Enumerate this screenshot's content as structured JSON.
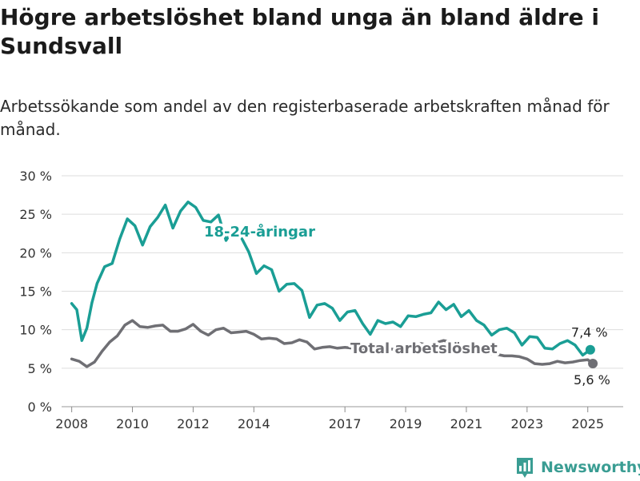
{
  "title": "Högre arbetslöshet bland unga än bland äldre i Sundsvall",
  "subtitle": "Arbetssökande som andel av den registerbaserade arbetskraften månad för månad.",
  "brand": "Newsworthy",
  "chart_data": {
    "type": "line",
    "x_ticks": [
      "2008",
      "2010",
      "2012",
      "2014",
      "2017",
      "2019",
      "2021",
      "2023",
      "2025"
    ],
    "y_ticks": [
      "0 %",
      "5 %",
      "10 %",
      "15 %",
      "20 %",
      "25 %",
      "30 %"
    ],
    "ylim": [
      0,
      30
    ],
    "xlim": [
      "2007-09",
      "2026-03"
    ],
    "grid": true,
    "series": [
      {
        "name": "18-24-åringar",
        "color": "#1a9e95",
        "end_label": "7,4 %",
        "points": [
          [
            "2008-01",
            13.4
          ],
          [
            "2008-03",
            12.6
          ],
          [
            "2008-05",
            8.6
          ],
          [
            "2008-07",
            10.2
          ],
          [
            "2008-09",
            13.5
          ],
          [
            "2008-11",
            16.0
          ],
          [
            "2009-02",
            18.2
          ],
          [
            "2009-05",
            18.6
          ],
          [
            "2009-08",
            21.8
          ],
          [
            "2009-11",
            24.4
          ],
          [
            "2010-02",
            23.5
          ],
          [
            "2010-05",
            21.0
          ],
          [
            "2010-08",
            23.4
          ],
          [
            "2010-11",
            24.6
          ],
          [
            "2011-02",
            26.2
          ],
          [
            "2011-05",
            23.2
          ],
          [
            "2011-08",
            25.4
          ],
          [
            "2011-11",
            26.6
          ],
          [
            "2012-02",
            25.9
          ],
          [
            "2012-05",
            24.2
          ],
          [
            "2012-08",
            24.0
          ],
          [
            "2012-11",
            24.9
          ],
          [
            "2013-02",
            21.6
          ],
          [
            "2013-05",
            23.2
          ],
          [
            "2013-08",
            22.0
          ],
          [
            "2013-11",
            20.1
          ],
          [
            "2014-02",
            17.3
          ],
          [
            "2014-05",
            18.3
          ],
          [
            "2014-08",
            17.8
          ],
          [
            "2014-11",
            15.0
          ],
          [
            "2015-02",
            15.9
          ],
          [
            "2015-05",
            16.0
          ],
          [
            "2015-08",
            15.1
          ],
          [
            "2015-11",
            11.6
          ],
          [
            "2016-02",
            13.2
          ],
          [
            "2016-05",
            13.4
          ],
          [
            "2016-08",
            12.8
          ],
          [
            "2016-11",
            11.2
          ],
          [
            "2017-02",
            12.3
          ],
          [
            "2017-05",
            12.5
          ],
          [
            "2017-08",
            10.8
          ],
          [
            "2017-11",
            9.4
          ],
          [
            "2018-02",
            11.2
          ],
          [
            "2018-05",
            10.8
          ],
          [
            "2018-08",
            11.0
          ],
          [
            "2018-11",
            10.4
          ],
          [
            "2019-02",
            11.8
          ],
          [
            "2019-05",
            11.7
          ],
          [
            "2019-08",
            12.0
          ],
          [
            "2019-11",
            12.2
          ],
          [
            "2020-02",
            13.6
          ],
          [
            "2020-05",
            12.6
          ],
          [
            "2020-08",
            13.3
          ],
          [
            "2020-11",
            11.7
          ],
          [
            "2021-02",
            12.5
          ],
          [
            "2021-05",
            11.2
          ],
          [
            "2021-08",
            10.6
          ],
          [
            "2021-11",
            9.3
          ],
          [
            "2022-02",
            10.0
          ],
          [
            "2022-05",
            10.2
          ],
          [
            "2022-08",
            9.6
          ],
          [
            "2022-11",
            8.0
          ],
          [
            "2023-02",
            9.1
          ],
          [
            "2023-05",
            9.0
          ],
          [
            "2023-08",
            7.6
          ],
          [
            "2023-11",
            7.5
          ],
          [
            "2024-02",
            8.2
          ],
          [
            "2024-05",
            8.6
          ],
          [
            "2024-08",
            8.0
          ],
          [
            "2024-11",
            6.7
          ],
          [
            "2025-02",
            7.4
          ]
        ]
      },
      {
        "name": "Total arbetslöshet",
        "color": "#6f6f74",
        "end_label": "5,6 %",
        "points": [
          [
            "2008-01",
            6.2
          ],
          [
            "2008-04",
            5.9
          ],
          [
            "2008-07",
            5.2
          ],
          [
            "2008-10",
            5.8
          ],
          [
            "2009-01",
            7.2
          ],
          [
            "2009-04",
            8.4
          ],
          [
            "2009-07",
            9.2
          ],
          [
            "2009-10",
            10.6
          ],
          [
            "2010-01",
            11.2
          ],
          [
            "2010-04",
            10.4
          ],
          [
            "2010-07",
            10.3
          ],
          [
            "2010-10",
            10.5
          ],
          [
            "2011-01",
            10.6
          ],
          [
            "2011-04",
            9.8
          ],
          [
            "2011-07",
            9.8
          ],
          [
            "2011-10",
            10.1
          ],
          [
            "2012-01",
            10.7
          ],
          [
            "2012-04",
            9.8
          ],
          [
            "2012-07",
            9.3
          ],
          [
            "2012-10",
            10.0
          ],
          [
            "2013-01",
            10.2
          ],
          [
            "2013-04",
            9.6
          ],
          [
            "2013-07",
            9.7
          ],
          [
            "2013-10",
            9.8
          ],
          [
            "2014-01",
            9.4
          ],
          [
            "2014-04",
            8.8
          ],
          [
            "2014-07",
            8.9
          ],
          [
            "2014-10",
            8.8
          ],
          [
            "2015-01",
            8.2
          ],
          [
            "2015-04",
            8.3
          ],
          [
            "2015-07",
            8.7
          ],
          [
            "2015-10",
            8.4
          ],
          [
            "2016-01",
            7.5
          ],
          [
            "2016-04",
            7.7
          ],
          [
            "2016-07",
            7.8
          ],
          [
            "2016-10",
            7.6
          ],
          [
            "2017-01",
            7.7
          ],
          [
            "2017-04",
            7.6
          ],
          [
            "2017-07",
            7.5
          ],
          [
            "2017-10",
            7.5
          ],
          [
            "2018-01",
            7.6
          ],
          [
            "2018-04",
            7.6
          ],
          [
            "2018-07",
            7.5
          ],
          [
            "2018-10",
            7.4
          ],
          [
            "2019-01",
            7.6
          ],
          [
            "2019-04",
            7.8
          ],
          [
            "2019-07",
            8.2
          ],
          [
            "2019-10",
            8.0
          ],
          [
            "2020-01",
            8.3
          ],
          [
            "2020-04",
            8.6
          ],
          [
            "2020-07",
            8.4
          ],
          [
            "2020-10",
            8.0
          ],
          [
            "2021-01",
            7.8
          ],
          [
            "2021-04",
            7.5
          ],
          [
            "2021-07",
            7.2
          ],
          [
            "2021-10",
            6.9
          ],
          [
            "2022-01",
            6.8
          ],
          [
            "2022-04",
            6.6
          ],
          [
            "2022-07",
            6.6
          ],
          [
            "2022-10",
            6.5
          ],
          [
            "2023-01",
            6.2
          ],
          [
            "2023-04",
            5.6
          ],
          [
            "2023-07",
            5.5
          ],
          [
            "2023-10",
            5.6
          ],
          [
            "2024-01",
            5.9
          ],
          [
            "2024-04",
            5.7
          ],
          [
            "2024-07",
            5.8
          ],
          [
            "2024-10",
            6.0
          ],
          [
            "2025-01",
            6.1
          ],
          [
            "2025-03",
            5.6
          ]
        ]
      }
    ]
  }
}
